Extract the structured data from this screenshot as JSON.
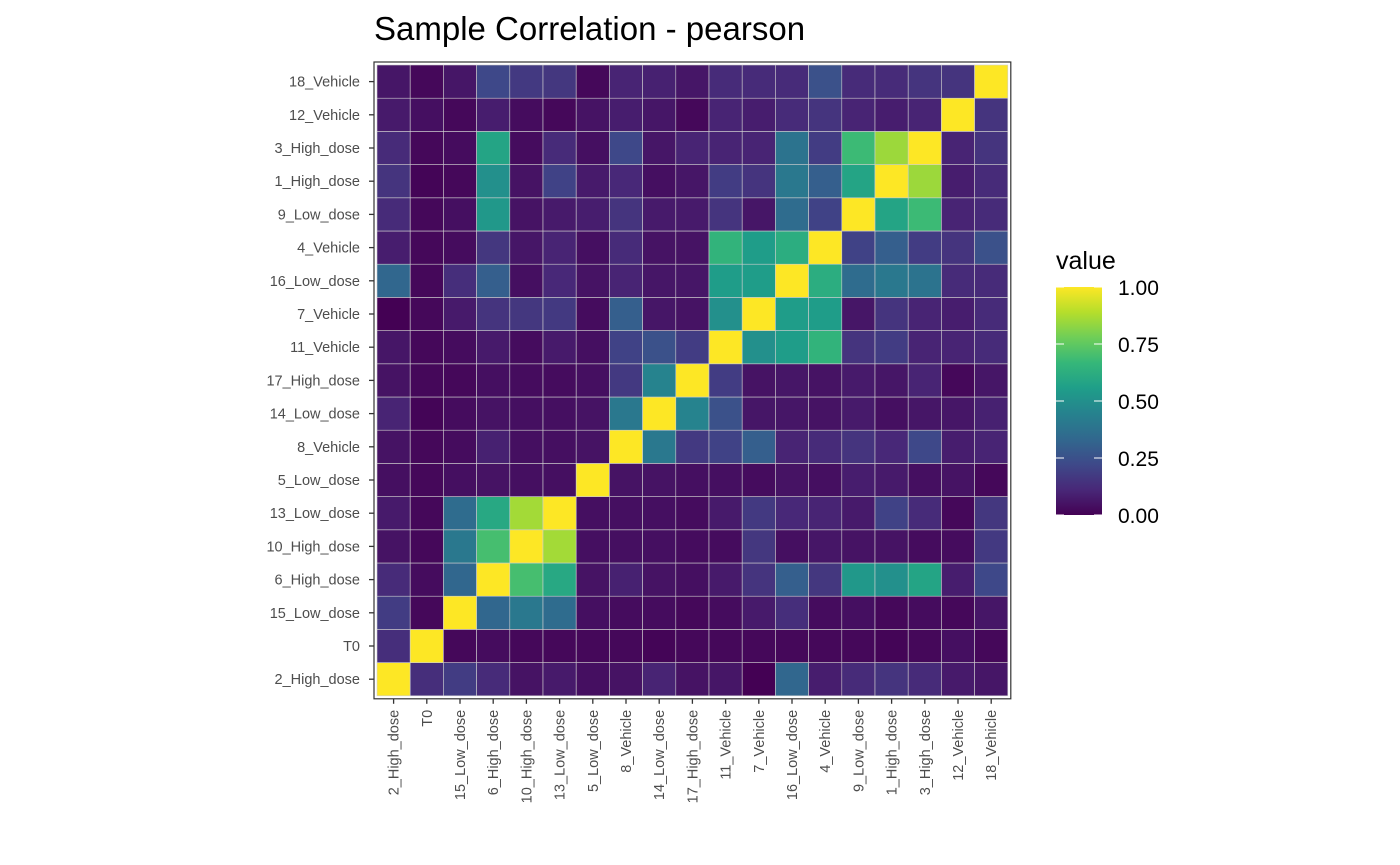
{
  "chart_data": {
    "type": "heatmap",
    "title": "Sample Correlation - pearson",
    "xlabel": "",
    "ylabel": "",
    "samples": [
      "2_High_dose",
      "T0",
      "15_Low_dose",
      "6_High_dose",
      "10_High_dose",
      "13_Low_dose",
      "5_Low_dose",
      "8_Vehicle",
      "14_Low_dose",
      "17_High_dose",
      "11_Vehicle",
      "7_Vehicle",
      "16_Low_dose",
      "4_Vehicle",
      "9_Low_dose",
      "1_High_dose",
      "3_High_dose",
      "12_Vehicle",
      "18_Vehicle"
    ],
    "values": [
      [
        1.0,
        0.13,
        0.18,
        0.12,
        0.05,
        0.07,
        0.04,
        0.05,
        0.1,
        0.05,
        0.06,
        0.0,
        0.33,
        0.08,
        0.12,
        0.15,
        0.12,
        0.07,
        0.06
      ],
      [
        0.13,
        1.0,
        0.02,
        0.03,
        0.02,
        0.02,
        0.02,
        0.02,
        0.01,
        0.02,
        0.02,
        0.02,
        0.02,
        0.02,
        0.02,
        0.01,
        0.02,
        0.04,
        0.02
      ],
      [
        0.18,
        0.02,
        1.0,
        0.33,
        0.4,
        0.35,
        0.04,
        0.03,
        0.03,
        0.02,
        0.03,
        0.07,
        0.13,
        0.03,
        0.04,
        0.02,
        0.03,
        0.02,
        0.06
      ],
      [
        0.12,
        0.03,
        0.33,
        1.0,
        0.7,
        0.6,
        0.05,
        0.09,
        0.05,
        0.04,
        0.07,
        0.15,
        0.3,
        0.16,
        0.53,
        0.5,
        0.58,
        0.08,
        0.22
      ],
      [
        0.05,
        0.02,
        0.4,
        0.7,
        1.0,
        0.86,
        0.04,
        0.04,
        0.04,
        0.03,
        0.03,
        0.16,
        0.04,
        0.06,
        0.05,
        0.05,
        0.03,
        0.03,
        0.17
      ],
      [
        0.07,
        0.02,
        0.35,
        0.6,
        0.86,
        1.0,
        0.04,
        0.04,
        0.04,
        0.03,
        0.07,
        0.17,
        0.11,
        0.1,
        0.07,
        0.2,
        0.12,
        0.02,
        0.16
      ],
      [
        0.04,
        0.02,
        0.04,
        0.05,
        0.04,
        0.04,
        1.0,
        0.05,
        0.05,
        0.04,
        0.04,
        0.03,
        0.05,
        0.04,
        0.08,
        0.07,
        0.04,
        0.05,
        0.02
      ],
      [
        0.05,
        0.02,
        0.03,
        0.09,
        0.04,
        0.04,
        0.05,
        1.0,
        0.4,
        0.17,
        0.2,
        0.3,
        0.1,
        0.12,
        0.15,
        0.11,
        0.22,
        0.08,
        0.1
      ],
      [
        0.1,
        0.01,
        0.03,
        0.05,
        0.04,
        0.04,
        0.05,
        0.4,
        1.0,
        0.45,
        0.25,
        0.06,
        0.06,
        0.05,
        0.07,
        0.04,
        0.06,
        0.06,
        0.09
      ],
      [
        0.05,
        0.02,
        0.02,
        0.04,
        0.03,
        0.03,
        0.04,
        0.17,
        0.45,
        1.0,
        0.18,
        0.05,
        0.06,
        0.05,
        0.07,
        0.06,
        0.1,
        0.02,
        0.06
      ],
      [
        0.06,
        0.02,
        0.03,
        0.07,
        0.03,
        0.07,
        0.04,
        0.2,
        0.25,
        0.18,
        1.0,
        0.5,
        0.55,
        0.65,
        0.15,
        0.18,
        0.1,
        0.1,
        0.12
      ],
      [
        0.0,
        0.02,
        0.07,
        0.15,
        0.16,
        0.17,
        0.03,
        0.3,
        0.06,
        0.05,
        0.5,
        1.0,
        0.55,
        0.55,
        0.06,
        0.15,
        0.1,
        0.08,
        0.12
      ],
      [
        0.33,
        0.02,
        0.13,
        0.3,
        0.04,
        0.11,
        0.05,
        0.1,
        0.06,
        0.06,
        0.55,
        0.55,
        1.0,
        0.62,
        0.35,
        0.4,
        0.38,
        0.12,
        0.12
      ],
      [
        0.08,
        0.02,
        0.03,
        0.16,
        0.06,
        0.1,
        0.04,
        0.12,
        0.05,
        0.05,
        0.65,
        0.55,
        0.62,
        1.0,
        0.2,
        0.3,
        0.18,
        0.15,
        0.25
      ],
      [
        0.12,
        0.02,
        0.04,
        0.53,
        0.05,
        0.07,
        0.08,
        0.15,
        0.07,
        0.07,
        0.15,
        0.06,
        0.35,
        0.2,
        1.0,
        0.58,
        0.68,
        0.1,
        0.12
      ],
      [
        0.15,
        0.01,
        0.02,
        0.5,
        0.05,
        0.2,
        0.07,
        0.11,
        0.04,
        0.06,
        0.18,
        0.15,
        0.4,
        0.3,
        0.58,
        1.0,
        0.85,
        0.08,
        0.12
      ],
      [
        0.12,
        0.02,
        0.03,
        0.58,
        0.03,
        0.12,
        0.04,
        0.22,
        0.06,
        0.1,
        0.1,
        0.1,
        0.38,
        0.18,
        0.68,
        0.85,
        1.0,
        0.1,
        0.15
      ],
      [
        0.07,
        0.04,
        0.02,
        0.08,
        0.03,
        0.02,
        0.05,
        0.08,
        0.06,
        0.02,
        0.1,
        0.08,
        0.12,
        0.15,
        0.1,
        0.08,
        0.1,
        1.0,
        0.15
      ],
      [
        0.06,
        0.02,
        0.06,
        0.22,
        0.17,
        0.16,
        0.02,
        0.1,
        0.09,
        0.06,
        0.12,
        0.12,
        0.12,
        0.25,
        0.12,
        0.12,
        0.15,
        0.15,
        1.0
      ]
    ],
    "colorscale": "viridis",
    "grid": true,
    "legend": {
      "title": "value",
      "placement": "right",
      "ticks": [
        "0.00",
        "0.25",
        "0.50",
        "0.75",
        "1.00"
      ],
      "tick_values": [
        0,
        0.25,
        0.5,
        0.75,
        1.0
      ],
      "range": [
        0,
        1
      ]
    },
    "colors": {
      "viridis_stops": [
        "#440154",
        "#482878",
        "#3e4989",
        "#31688e",
        "#26828e",
        "#1f9e89",
        "#35b779",
        "#6ece58",
        "#b5de2b",
        "#fde725"
      ],
      "cell_border": "#d0d0d0",
      "panel_border": "#333333",
      "tick_text": "#4d4d4d"
    }
  }
}
